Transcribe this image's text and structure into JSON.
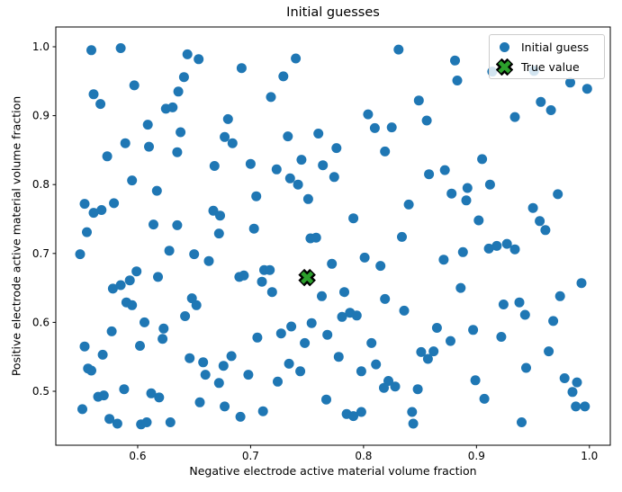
{
  "chart_data": {
    "type": "scatter",
    "title": "Initial guesses",
    "xlabel": "Negative electrode active material volume fraction",
    "ylabel": "Positive electrode active material volume fraction",
    "xlim": [
      0.5275,
      1.0185
    ],
    "ylim": [
      0.4217,
      1.0287
    ],
    "xticks": [
      "0.6",
      "0.7",
      "0.8",
      "0.9",
      "1.0"
    ],
    "xtick_values": [
      0.6,
      0.7,
      0.8,
      0.9,
      1.0
    ],
    "yticks": [
      "0.5",
      "0.6",
      "0.7",
      "0.8",
      "0.9",
      "1.0"
    ],
    "ytick_values": [
      0.5,
      0.6,
      0.7,
      0.8,
      0.9,
      1.0
    ],
    "grid": false,
    "legend": {
      "position": "upper-right",
      "entries": [
        {
          "label": "Initial guess",
          "marker": "dot",
          "color": "#1f77b4"
        },
        {
          "label": "True value",
          "marker": "X",
          "color": "#2ca02c",
          "edge_color": "#000000"
        }
      ]
    },
    "series": [
      {
        "name": "Initial guess",
        "marker": "circle",
        "color": "#1f77b4",
        "marker_radius_px": 5.5,
        "points": [
          [
            0.559,
            0.995
          ],
          [
            0.585,
            0.998
          ],
          [
            0.644,
            0.989
          ],
          [
            0.654,
            0.982
          ],
          [
            0.692,
            0.969
          ],
          [
            0.641,
            0.956
          ],
          [
            0.597,
            0.944
          ],
          [
            0.636,
            0.935
          ],
          [
            0.561,
            0.931
          ],
          [
            0.567,
            0.917
          ],
          [
            0.625,
            0.91
          ],
          [
            0.631,
            0.912
          ],
          [
            0.68,
            0.895
          ],
          [
            0.609,
            0.887
          ],
          [
            0.638,
            0.876
          ],
          [
            0.677,
            0.869
          ],
          [
            0.684,
            0.86
          ],
          [
            0.589,
            0.86
          ],
          [
            0.61,
            0.855
          ],
          [
            0.635,
            0.847
          ],
          [
            0.573,
            0.841
          ],
          [
            0.668,
            0.827
          ],
          [
            0.595,
            0.806
          ],
          [
            0.617,
            0.791
          ],
          [
            0.579,
            0.773
          ],
          [
            0.568,
            0.763
          ],
          [
            0.561,
            0.759
          ],
          [
            0.667,
            0.762
          ],
          [
            0.673,
            0.755
          ],
          [
            0.614,
            0.742
          ],
          [
            0.635,
            0.741
          ],
          [
            0.555,
            0.731
          ],
          [
            0.672,
            0.729
          ],
          [
            0.553,
            0.772
          ],
          [
            0.831,
            0.996
          ],
          [
            0.74,
            0.983
          ],
          [
            0.729,
            0.957
          ],
          [
            0.718,
            0.927
          ],
          [
            0.849,
            0.922
          ],
          [
            0.804,
            0.902
          ],
          [
            0.856,
            0.893
          ],
          [
            0.81,
            0.882
          ],
          [
            0.825,
            0.883
          ],
          [
            0.733,
            0.87
          ],
          [
            0.76,
            0.874
          ],
          [
            0.776,
            0.853
          ],
          [
            0.819,
            0.848
          ],
          [
            0.745,
            0.836
          ],
          [
            0.7,
            0.83
          ],
          [
            0.764,
            0.828
          ],
          [
            0.723,
            0.822
          ],
          [
            0.774,
            0.811
          ],
          [
            0.735,
            0.809
          ],
          [
            0.742,
            0.8
          ],
          [
            0.858,
            0.815
          ],
          [
            0.705,
            0.783
          ],
          [
            0.751,
            0.779
          ],
          [
            0.84,
            0.771
          ],
          [
            0.791,
            0.751
          ],
          [
            0.703,
            0.736
          ],
          [
            0.753,
            0.722
          ],
          [
            0.758,
            0.723
          ],
          [
            0.834,
            0.724
          ],
          [
            0.881,
            0.98
          ],
          [
            0.883,
            0.951
          ],
          [
            0.983,
            0.948
          ],
          [
            0.998,
            0.939
          ],
          [
            0.957,
            0.92
          ],
          [
            0.966,
            0.908
          ],
          [
            0.934,
            0.898
          ],
          [
            0.905,
            0.837
          ],
          [
            0.872,
            0.821
          ],
          [
            0.912,
            0.8
          ],
          [
            0.892,
            0.795
          ],
          [
            0.878,
            0.787
          ],
          [
            0.891,
            0.777
          ],
          [
            0.972,
            0.786
          ],
          [
            0.95,
            0.766
          ],
          [
            0.902,
            0.748
          ],
          [
            0.956,
            0.747
          ],
          [
            0.961,
            0.734
          ],
          [
            0.914,
            0.964
          ],
          [
            0.951,
            0.965
          ],
          [
            0.549,
            0.699
          ],
          [
            0.628,
            0.704
          ],
          [
            0.65,
            0.699
          ],
          [
            0.663,
            0.689
          ],
          [
            0.599,
            0.674
          ],
          [
            0.618,
            0.666
          ],
          [
            0.593,
            0.661
          ],
          [
            0.578,
            0.649
          ],
          [
            0.585,
            0.654
          ],
          [
            0.69,
            0.666
          ],
          [
            0.694,
            0.668
          ],
          [
            0.59,
            0.629
          ],
          [
            0.595,
            0.625
          ],
          [
            0.648,
            0.635
          ],
          [
            0.652,
            0.625
          ],
          [
            0.642,
            0.609
          ],
          [
            0.606,
            0.6
          ],
          [
            0.577,
            0.587
          ],
          [
            0.623,
            0.591
          ],
          [
            0.622,
            0.576
          ],
          [
            0.602,
            0.566
          ],
          [
            0.553,
            0.565
          ],
          [
            0.569,
            0.553
          ],
          [
            0.646,
            0.548
          ],
          [
            0.658,
            0.542
          ],
          [
            0.683,
            0.551
          ],
          [
            0.556,
            0.533
          ],
          [
            0.559,
            0.53
          ],
          [
            0.66,
            0.524
          ],
          [
            0.676,
            0.537
          ],
          [
            0.672,
            0.512
          ],
          [
            0.588,
            0.503
          ],
          [
            0.612,
            0.497
          ],
          [
            0.619,
            0.491
          ],
          [
            0.565,
            0.492
          ],
          [
            0.57,
            0.494
          ],
          [
            0.551,
            0.474
          ],
          [
            0.655,
            0.484
          ],
          [
            0.677,
            0.478
          ],
          [
            0.575,
            0.46
          ],
          [
            0.582,
            0.453
          ],
          [
            0.603,
            0.452
          ],
          [
            0.608,
            0.455
          ],
          [
            0.629,
            0.455
          ],
          [
            0.691,
            0.463
          ],
          [
            0.801,
            0.694
          ],
          [
            0.772,
            0.685
          ],
          [
            0.815,
            0.682
          ],
          [
            0.712,
            0.676
          ],
          [
            0.717,
            0.676
          ],
          [
            0.71,
            0.659
          ],
          [
            0.719,
            0.644
          ],
          [
            0.763,
            0.638
          ],
          [
            0.783,
            0.644
          ],
          [
            0.819,
            0.634
          ],
          [
            0.836,
            0.617
          ],
          [
            0.781,
            0.608
          ],
          [
            0.788,
            0.614
          ],
          [
            0.794,
            0.61
          ],
          [
            0.754,
            0.599
          ],
          [
            0.736,
            0.594
          ],
          [
            0.727,
            0.584
          ],
          [
            0.706,
            0.578
          ],
          [
            0.768,
            0.582
          ],
          [
            0.748,
            0.57
          ],
          [
            0.807,
            0.57
          ],
          [
            0.778,
            0.55
          ],
          [
            0.851,
            0.557
          ],
          [
            0.734,
            0.54
          ],
          [
            0.744,
            0.529
          ],
          [
            0.811,
            0.539
          ],
          [
            0.698,
            0.524
          ],
          [
            0.798,
            0.529
          ],
          [
            0.724,
            0.514
          ],
          [
            0.822,
            0.515
          ],
          [
            0.828,
            0.507
          ],
          [
            0.818,
            0.505
          ],
          [
            0.848,
            0.503
          ],
          [
            0.767,
            0.488
          ],
          [
            0.711,
            0.471
          ],
          [
            0.785,
            0.467
          ],
          [
            0.791,
            0.464
          ],
          [
            0.798,
            0.47
          ],
          [
            0.843,
            0.47
          ],
          [
            0.844,
            0.453
          ],
          [
            0.911,
            0.707
          ],
          [
            0.918,
            0.711
          ],
          [
            0.927,
            0.714
          ],
          [
            0.934,
            0.706
          ],
          [
            0.871,
            0.691
          ],
          [
            0.888,
            0.702
          ],
          [
            0.886,
            0.65
          ],
          [
            0.993,
            0.657
          ],
          [
            0.974,
            0.638
          ],
          [
            0.924,
            0.626
          ],
          [
            0.938,
            0.629
          ],
          [
            0.943,
            0.611
          ],
          [
            0.968,
            0.602
          ],
          [
            0.865,
            0.592
          ],
          [
            0.897,
            0.589
          ],
          [
            0.877,
            0.573
          ],
          [
            0.922,
            0.579
          ],
          [
            0.862,
            0.558
          ],
          [
            0.857,
            0.547
          ],
          [
            0.964,
            0.558
          ],
          [
            0.944,
            0.534
          ],
          [
            0.978,
            0.519
          ],
          [
            0.989,
            0.513
          ],
          [
            0.899,
            0.516
          ],
          [
            0.985,
            0.499
          ],
          [
            0.907,
            0.489
          ],
          [
            0.988,
            0.478
          ],
          [
            0.996,
            0.478
          ],
          [
            0.94,
            0.455
          ]
        ]
      },
      {
        "name": "True value",
        "marker": "X",
        "color": "#2ca02c",
        "edge_color": "#000000",
        "marker_size_px": 18,
        "points": [
          [
            0.75,
            0.665
          ]
        ]
      }
    ]
  }
}
